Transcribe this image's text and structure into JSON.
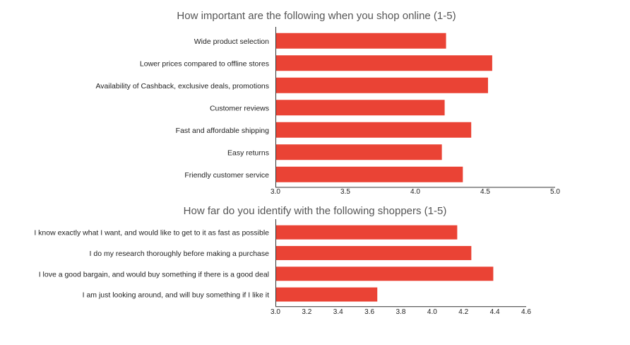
{
  "chart_data": [
    {
      "type": "bar",
      "orientation": "horizontal",
      "title": "How important are the following when you shop online (1-5)",
      "categories": [
        "Wide product selection",
        "Lower prices compared to offline stores",
        "Availability of Cashback, exclusive deals, promotions",
        "Customer reviews",
        "Fast and affordable shipping",
        "Easy returns",
        "Friendly customer service"
      ],
      "values": [
        4.22,
        4.55,
        4.52,
        4.21,
        4.4,
        4.19,
        4.34
      ],
      "xlim": [
        3.0,
        5.0
      ],
      "ticks": [
        "3.0",
        "3.5",
        "4.0",
        "4.5",
        "5.0"
      ],
      "grid": false,
      "legend": "none",
      "color": "#ea4335"
    },
    {
      "type": "bar",
      "orientation": "horizontal",
      "title": "How far do you identify with the following shoppers (1-5)",
      "categories": [
        "I know exactly what I want, and would like to get to it as fast as possible",
        "I do my research thoroughly before making a purchase",
        "I love a good bargain, and would buy something if there is a good deal",
        "I am just looking around, and will buy something if I like it"
      ],
      "values": [
        4.16,
        4.25,
        4.39,
        3.65
      ],
      "xlim": [
        3.0,
        4.6
      ],
      "ticks": [
        "3.0",
        "3.2",
        "3.4",
        "3.6",
        "3.8",
        "4.0",
        "4.2",
        "4.4",
        "4.6"
      ],
      "grid": false,
      "legend": "none",
      "color": "#ea4335"
    }
  ]
}
